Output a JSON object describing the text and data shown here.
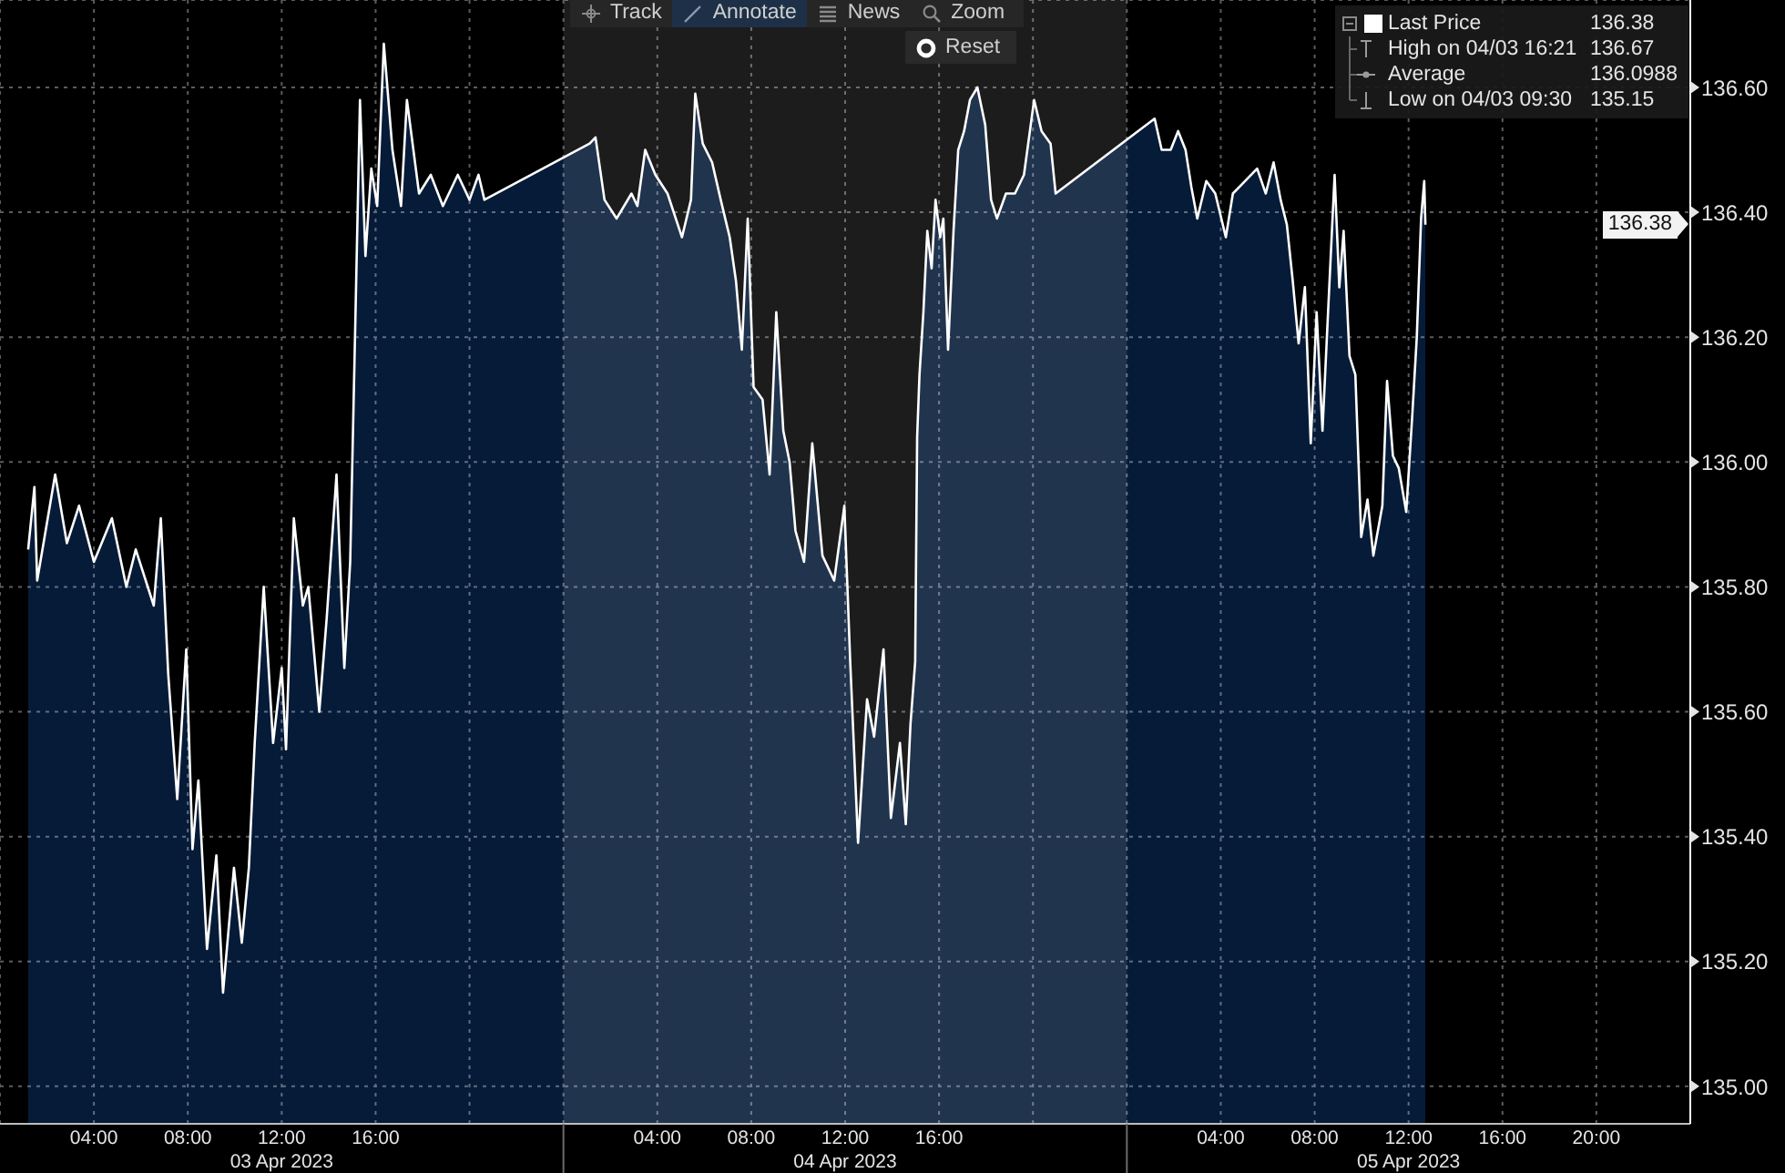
{
  "chart_data": {
    "type": "area",
    "annotations": [
      "Track",
      "Annotate",
      "News",
      "Zoom",
      "Reset",
      "136.38",
      "High on 04/03 16:21",
      "136.67",
      "Average",
      "136.0988",
      "Low on 04/03 09:30",
      "135.15",
      "03 Apr 2023",
      "04 Apr 2023",
      "05 Apr 2023",
      {
        "text": "136.38",
        "y": 136.38
      }
    ],
    "x": [
      "2023-04-03T01:12",
      "2023-04-03T01:28",
      "2023-04-03T01:35",
      "2023-04-03T02:21",
      "2023-04-03T02:51",
      "2023-04-03T03:22",
      "2023-04-03T04:00",
      "2023-04-03T04:46",
      "2023-04-03T05:23",
      "2023-04-03T05:47",
      "2023-04-03T06:33",
      "2023-04-03T06:51",
      "2023-04-03T07:10",
      "2023-04-03T07:33",
      "2023-04-03T07:56",
      "2023-04-03T08:12",
      "2023-04-03T08:27",
      "2023-04-03T08:49",
      "2023-04-03T09:13",
      "2023-04-03T09:30",
      "2023-04-03T09:58",
      "2023-04-03T10:18",
      "2023-04-03T10:36",
      "2023-04-03T10:51",
      "2023-04-03T11:14",
      "2023-04-03T11:38",
      "2023-04-03T12:00",
      "2023-04-03T12:11",
      "2023-04-03T12:31",
      "2023-04-03T12:54",
      "2023-04-03T13:08",
      "2023-04-03T13:36",
      "2023-04-03T13:55",
      "2023-04-03T14:20",
      "2023-04-03T14:40",
      "2023-04-03T14:55",
      "2023-04-03T15:08",
      "2023-04-03T15:20",
      "2023-04-03T15:34",
      "2023-04-03T15:49",
      "2023-04-03T16:04",
      "2023-04-03T16:21",
      "2023-04-03T16:43",
      "2023-04-03T17:05",
      "2023-04-03T17:20",
      "2023-04-03T17:51",
      "2023-04-03T18:21",
      "2023-04-03T18:52",
      "2023-04-03T19:30",
      "2023-04-03T20:00",
      "2023-04-03T20:23",
      "2023-04-03T20:38",
      "2023-04-04T01:07",
      "2023-04-04T01:22",
      "2023-04-04T01:45",
      "2023-04-04T02:16",
      "2023-04-04T02:54",
      "2023-04-04T03:09",
      "2023-04-04T03:29",
      "2023-04-04T03:55",
      "2023-04-04T04:26",
      "2023-04-04T05:03",
      "2023-04-04T05:26",
      "2023-04-04T05:37",
      "2023-04-04T05:56",
      "2023-04-04T06:20",
      "2023-04-04T06:42",
      "2023-04-04T07:05",
      "2023-04-04T07:21",
      "2023-04-04T07:36",
      "2023-04-04T07:51",
      "2023-04-04T08:06",
      "2023-04-04T08:29",
      "2023-04-04T08:47",
      "2023-04-04T09:04",
      "2023-04-04T09:22",
      "2023-04-04T09:38",
      "2023-04-04T09:53",
      "2023-04-04T10:15",
      "2023-04-04T10:36",
      "2023-04-04T11:02",
      "2023-04-04T11:32",
      "2023-04-04T11:58",
      "2023-04-04T12:13",
      "2023-04-04T12:33",
      "2023-04-04T12:56",
      "2023-04-04T13:14",
      "2023-04-04T13:38",
      "2023-04-04T13:57",
      "2023-04-04T14:20",
      "2023-04-04T14:35",
      "2023-04-04T14:47",
      "2023-04-04T14:59",
      "2023-04-04T15:04",
      "2023-04-04T15:10",
      "2023-04-04T15:20",
      "2023-04-04T15:30",
      "2023-04-04T15:41",
      "2023-04-04T15:51",
      "2023-04-04T16:03",
      "2023-04-04T16:11",
      "2023-04-04T16:23",
      "2023-04-04T16:37",
      "2023-04-04T16:49",
      "2023-04-04T17:04",
      "2023-04-04T17:19",
      "2023-04-04T17:38",
      "2023-04-04T17:58",
      "2023-04-04T18:13",
      "2023-04-04T18:28",
      "2023-04-04T18:51",
      "2023-04-04T19:14",
      "2023-04-04T19:37",
      "2023-04-04T20:03",
      "2023-04-04T20:22",
      "2023-04-04T20:45",
      "2023-04-04T20:58",
      "2023-04-05T01:11",
      "2023-04-05T01:29",
      "2023-04-05T01:52",
      "2023-04-05T02:11",
      "2023-04-05T02:30",
      "2023-04-05T02:45",
      "2023-04-05T03:00",
      "2023-04-05T03:23",
      "2023-04-05T03:46",
      "2023-04-05T04:13",
      "2023-04-05T04:31",
      "2023-04-05T05:02",
      "2023-04-05T05:33",
      "2023-04-05T05:55",
      "2023-04-05T06:15",
      "2023-04-05T06:33",
      "2023-04-05T06:49",
      "2023-04-05T07:04",
      "2023-04-05T07:19",
      "2023-04-05T07:35",
      "2023-04-05T07:50",
      "2023-04-05T08:05",
      "2023-04-05T08:20",
      "2023-04-05T08:35",
      "2023-04-05T08:51",
      "2023-04-05T09:03",
      "2023-04-05T09:14",
      "2023-04-05T09:29",
      "2023-04-05T09:44",
      "2023-04-05T09:59",
      "2023-04-05T10:15",
      "2023-04-05T10:30",
      "2023-04-05T10:53",
      "2023-04-05T11:05",
      "2023-04-05T11:20",
      "2023-04-05T11:35",
      "2023-04-05T11:54",
      "2023-04-05T12:09",
      "2023-04-05T12:21",
      "2023-04-05T12:32",
      "2023-04-05T12:40",
      "2023-04-05T12:43"
    ],
    "series": [
      {
        "name": "Last Price",
        "color": "#ffffff",
        "values": [
          135.86,
          135.96,
          135.81,
          135.98,
          135.87,
          135.93,
          135.84,
          135.91,
          135.8,
          135.86,
          135.77,
          135.91,
          135.66,
          135.46,
          135.7,
          135.38,
          135.49,
          135.22,
          135.37,
          135.15,
          135.35,
          135.23,
          135.35,
          135.55,
          135.8,
          135.55,
          135.67,
          135.54,
          135.91,
          135.77,
          135.8,
          135.6,
          135.75,
          135.98,
          135.67,
          135.84,
          136.22,
          136.58,
          136.33,
          136.47,
          136.41,
          136.67,
          136.5,
          136.41,
          136.58,
          136.43,
          136.46,
          136.41,
          136.46,
          136.42,
          136.46,
          136.42,
          136.51,
          136.52,
          136.42,
          136.39,
          136.43,
          136.41,
          136.5,
          136.46,
          136.43,
          136.36,
          136.42,
          136.59,
          136.51,
          136.48,
          136.42,
          136.36,
          136.29,
          136.18,
          136.39,
          136.12,
          136.1,
          135.98,
          136.24,
          136.05,
          136.0,
          135.89,
          135.84,
          136.03,
          135.85,
          135.81,
          135.93,
          135.68,
          135.39,
          135.62,
          135.56,
          135.7,
          135.43,
          135.55,
          135.42,
          135.58,
          135.68,
          136.04,
          136.14,
          136.24,
          136.37,
          136.31,
          136.42,
          136.36,
          136.39,
          136.18,
          136.37,
          136.5,
          136.53,
          136.58,
          136.6,
          136.54,
          136.42,
          136.39,
          136.43,
          136.43,
          136.46,
          136.58,
          136.53,
          136.51,
          136.43,
          136.55,
          136.5,
          136.5,
          136.53,
          136.5,
          136.44,
          136.39,
          136.45,
          136.43,
          136.36,
          136.43,
          136.45,
          136.47,
          136.43,
          136.48,
          136.42,
          136.38,
          136.29,
          136.19,
          136.28,
          136.03,
          136.24,
          136.05,
          136.25,
          136.46,
          136.28,
          136.37,
          136.17,
          136.14,
          135.88,
          135.94,
          135.85,
          135.93,
          136.13,
          136.01,
          135.99,
          135.92,
          136.07,
          136.2,
          136.39,
          136.45,
          136.38
        ]
      }
    ],
    "xlim": [
      "2023-04-03T00:00",
      "2023-04-06T00:00"
    ],
    "xticks": [
      {
        "value": "2023-04-03T04:00",
        "label": "04:00"
      },
      {
        "value": "2023-04-03T08:00",
        "label": "08:00"
      },
      {
        "value": "2023-04-03T12:00",
        "label": "12:00"
      },
      {
        "value": "2023-04-03T16:00",
        "label": "16:00"
      },
      {
        "value": "2023-04-03T20:00",
        "label": null
      },
      {
        "value": "2023-04-04T00:00",
        "label": null
      },
      {
        "value": "2023-04-04T04:00",
        "label": "04:00"
      },
      {
        "value": "2023-04-04T08:00",
        "label": "08:00"
      },
      {
        "value": "2023-04-04T12:00",
        "label": "12:00"
      },
      {
        "value": "2023-04-04T16:00",
        "label": "16:00"
      },
      {
        "value": "2023-04-04T20:00",
        "label": null
      },
      {
        "value": "2023-04-05T00:00",
        "label": null
      },
      {
        "value": "2023-04-05T04:00",
        "label": "04:00"
      },
      {
        "value": "2023-04-05T08:00",
        "label": "08:00"
      },
      {
        "value": "2023-04-05T12:00",
        "label": "12:00"
      },
      {
        "value": "2023-04-05T16:00",
        "label": "16:00"
      },
      {
        "value": "2023-04-05T20:00",
        "label": "20:00"
      }
    ],
    "ylim": [
      134.94,
      136.74
    ],
    "yticks": [
      {
        "value": 135.0,
        "label": "135.00"
      },
      {
        "value": 135.2,
        "label": "135.20"
      },
      {
        "value": 135.4,
        "label": "135.40"
      },
      {
        "value": 135.6,
        "label": "135.60"
      },
      {
        "value": 135.8,
        "label": "135.80"
      },
      {
        "value": 136.0,
        "label": "136.00"
      },
      {
        "value": 136.2,
        "label": "136.20"
      },
      {
        "value": 136.4,
        "label": "136.40"
      },
      {
        "value": 136.6,
        "label": "136.60"
      }
    ],
    "bands": [
      {
        "axis": "x",
        "from": "2023-04-04T00:00",
        "to": "2023-04-05T00:00",
        "color": "#1c1c1c"
      }
    ],
    "grid": true,
    "legend": "top right"
  }
}
